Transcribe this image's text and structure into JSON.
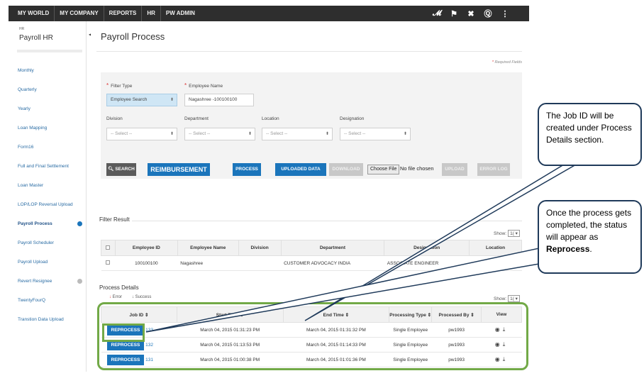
{
  "topnav": [
    "MY WORLD",
    "MY COMPANY",
    "REPORTS",
    "HR",
    "PW ADMIN"
  ],
  "topicons": [
    "book-icon",
    "flag-icon",
    "tools-icon",
    "help-icon",
    "share-icon"
  ],
  "sidebar": {
    "section": "HR",
    "title": "Payroll HR",
    "items": [
      {
        "label": "Monthly"
      },
      {
        "label": "Quarterly"
      },
      {
        "label": "Yearly"
      },
      {
        "label": "Loan Mapping"
      },
      {
        "label": "Form16"
      },
      {
        "label": "Full and Final Settlement"
      },
      {
        "label": "Loan Master"
      },
      {
        "label": "LOP/LOP Reversal Upload"
      },
      {
        "label": "Payroll Process"
      },
      {
        "label": "Payroll Scheduler"
      },
      {
        "label": "Payroll Upload"
      },
      {
        "label": "Revert Resignee"
      },
      {
        "label": "TwentyFourQ"
      },
      {
        "label": "Transtion Data Upload"
      }
    ]
  },
  "page": {
    "title": "Payroll Process",
    "required_note": "Required Fields"
  },
  "filters": {
    "filter_type_label": "Filter Type",
    "filter_type_value": "Employee Search",
    "employee_name_label": "Employee Name",
    "employee_name_value": "Nagashree -100100100",
    "division_label": "Division",
    "division_value": "-- Select --",
    "department_label": "Department",
    "department_value": "-- Select --",
    "location_label": "Location",
    "location_value": "-- Select --",
    "designation_label": "Designation",
    "designation_value": "-- Select --"
  },
  "actions": {
    "search": "SEARCH",
    "reimbursement": "REIMBURSEMENT",
    "process": "PROCESS",
    "uploaded_data": "UPLOADED DATA",
    "download": "DOWNLOAD",
    "choose_file": "Choose File",
    "no_file": "No file chosen",
    "upload": "UPLOAD",
    "error_log": "ERROR LOG"
  },
  "filter_result": {
    "heading": "Filter Result",
    "show_label": "Show:",
    "show_value": "1(",
    "columns": [
      "Employee ID",
      "Employee Name",
      "Division",
      "Department",
      "Designation",
      "Location"
    ],
    "rows": [
      {
        "employee_id": "100100100",
        "employee_name": "Nagashree",
        "division": "",
        "department": "CUSTOMER ADVOCACY INDIA",
        "designation": "ASSOCIATE ENGINEER",
        "location": ""
      }
    ]
  },
  "process_details": {
    "heading": "Process Details",
    "legend_error": "Error",
    "legend_success": "Success",
    "show_label": "Show:",
    "show_value": "1(",
    "columns": [
      "Job ID",
      "Start Time",
      "End Time",
      "Processing Type",
      "Processed By",
      "View"
    ],
    "rows": [
      {
        "action": "REPROCESS",
        "job_id": "133",
        "start": "March 04, 2015 01:31:23 PM",
        "end": "March 04, 2015 01:31:32 PM",
        "type": "Single Employee",
        "by": "pw1993"
      },
      {
        "action": "REPROCESS",
        "job_id": "132",
        "start": "March 04, 2015 01:13:53 PM",
        "end": "March 04, 2015 01:14:33 PM",
        "type": "Single Employee",
        "by": "pw1993"
      },
      {
        "action": "REPROCESS",
        "job_id": "131",
        "start": "March 04, 2015 01:00:38 PM",
        "end": "March 04, 2015 01:01:36 PM",
        "type": "Single Employee",
        "by": "pw1993"
      }
    ]
  },
  "callouts": {
    "job_id": "The Job ID will be created under Process Details section.",
    "reprocess_prefix": "Once the process gets completed, the status will appear as",
    "reprocess_bold": "Reprocess",
    "reprocess_suffix": "."
  },
  "colors": {
    "accent": "#1b75bb",
    "topbar": "#2e2e2e",
    "highlight": "#72a947",
    "callout_border": "#1f3a5a"
  }
}
